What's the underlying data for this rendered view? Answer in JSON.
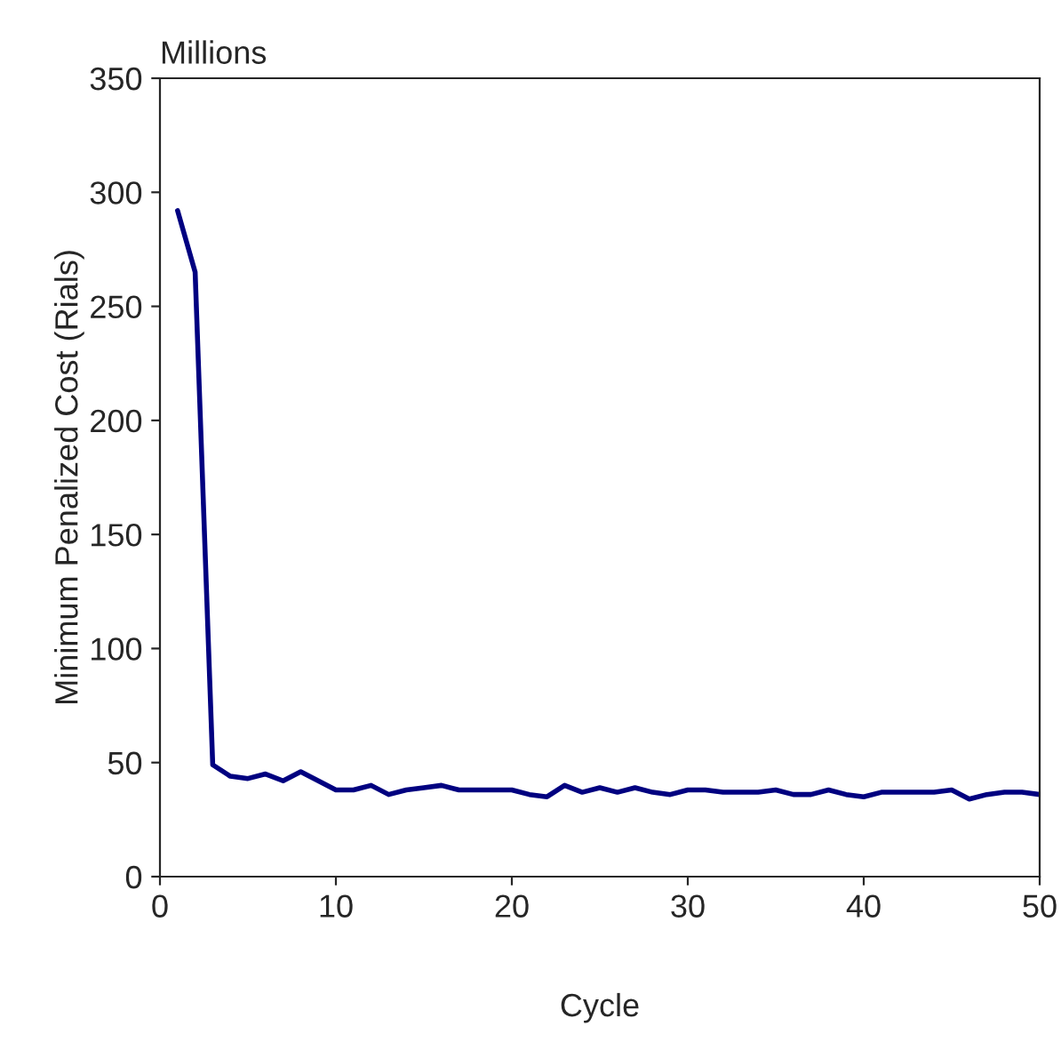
{
  "chart_data": {
    "type": "line",
    "xlabel": "Cycle",
    "ylabel": "Minimum Penalized Cost (Rials)",
    "annotations": [
      "Millions"
    ],
    "x": [
      1,
      2,
      3,
      4,
      5,
      6,
      7,
      8,
      9,
      10,
      11,
      12,
      13,
      14,
      15,
      16,
      17,
      18,
      19,
      20,
      21,
      22,
      23,
      24,
      25,
      26,
      27,
      28,
      29,
      30,
      31,
      32,
      33,
      34,
      35,
      36,
      37,
      38,
      39,
      40,
      41,
      42,
      43,
      44,
      45,
      46,
      47,
      48,
      49,
      50
    ],
    "series": [
      {
        "color": "#000080",
        "values": [
          292,
          265,
          49,
          44,
          43,
          45,
          42,
          46,
          42,
          38,
          38,
          40,
          36,
          38,
          39,
          40,
          38,
          38,
          38,
          38,
          36,
          35,
          40,
          37,
          39,
          37,
          39,
          37,
          36,
          38,
          38,
          37,
          37,
          37,
          38,
          36,
          36,
          38,
          36,
          35,
          37,
          37,
          37,
          37,
          38,
          34,
          36,
          37,
          37,
          36
        ]
      }
    ],
    "xlim": [
      0,
      50
    ],
    "xticks": [
      0,
      10,
      20,
      30,
      40,
      50
    ],
    "ylim": [
      0,
      350
    ],
    "yticks": [
      0,
      50,
      100,
      150,
      200,
      250,
      300,
      350
    ],
    "grid": false,
    "legend": false,
    "marker": "none",
    "line_style": "solid"
  }
}
